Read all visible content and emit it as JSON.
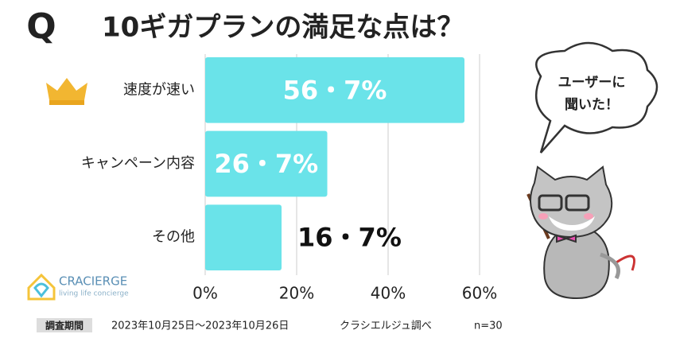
{
  "chart_data": {
    "type": "bar",
    "orientation": "horizontal",
    "title_prefix": "Q",
    "title": "10ギガプランの満足な点は？",
    "categories": [
      "速度が速い",
      "キャンペーン内容",
      "その他"
    ],
    "values": [
      56.7,
      26.7,
      16.7
    ],
    "value_labels": [
      "56・7%",
      "26・7%",
      "16・7%"
    ],
    "color": "#6ae3e9",
    "xlim": [
      0,
      60
    ],
    "xticks": [
      {
        "value": 0,
        "label": "0%"
      },
      {
        "value": 20,
        "label": "20%"
      },
      {
        "value": 40,
        "label": "40%"
      },
      {
        "value": 60,
        "label": "60%"
      }
    ],
    "grid": true,
    "survey_label": "調査期間",
    "survey_period": "2023年10月25日〜2023年10月26日",
    "source": "クラシエルジュ調べ",
    "sample_size": "n=30",
    "logo": {
      "name": "CRACIERGE",
      "tagline": "living life concierge"
    },
    "bubble": [
      "ユーザーに",
      "聞いた！"
    ]
  }
}
